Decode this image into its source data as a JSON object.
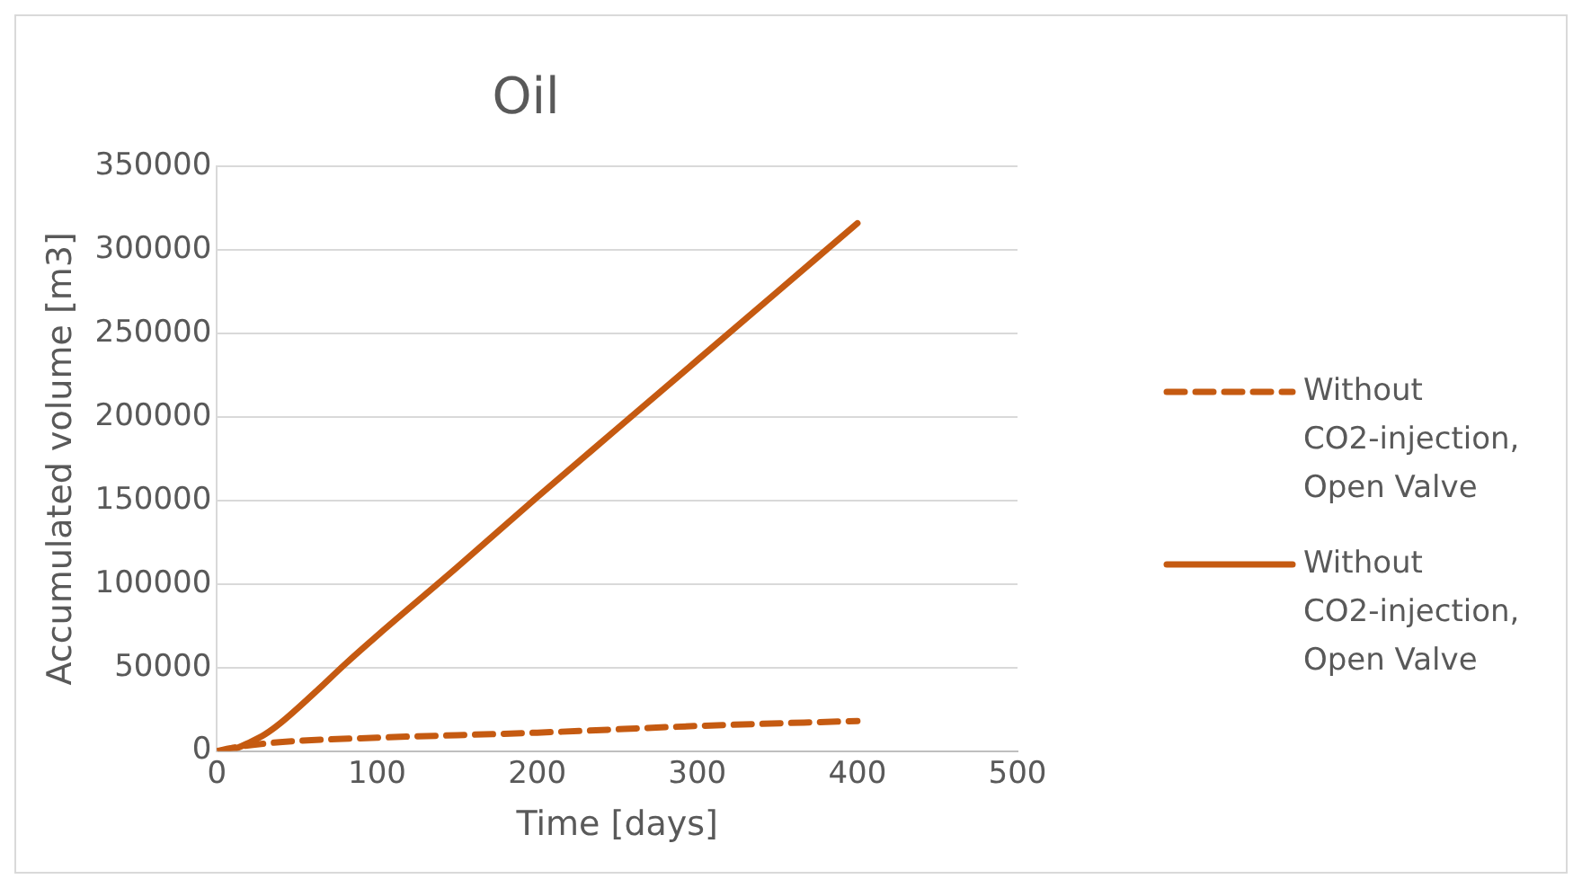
{
  "chart_data": {
    "type": "line",
    "title": "Oil",
    "xlabel": "Time [days]",
    "ylabel": "Accumulated volume [m3]",
    "xlim": [
      0,
      500
    ],
    "xticks": [
      0,
      100,
      200,
      300,
      400,
      500
    ],
    "ylim": [
      0,
      350000
    ],
    "yticks": [
      0,
      50000,
      100000,
      150000,
      200000,
      250000,
      300000,
      350000
    ],
    "grid": "y",
    "legend": "right",
    "marker": "none",
    "series": [
      {
        "name": "Without CO2-injection, Open Valve",
        "color": "#c55a11",
        "line_style": "dashed",
        "x": [
          0,
          10,
          25,
          50,
          100,
          200,
          300,
          400
        ],
        "values": [
          0,
          2000,
          4000,
          6000,
          8000,
          11000,
          15000,
          18000
        ]
      },
      {
        "name": "Without CO2-injection, Open Valve",
        "color": "#c55a11",
        "line_style": "solid",
        "x": [
          0,
          10,
          20,
          30,
          40,
          60,
          80,
          100,
          150,
          200,
          250,
          300,
          350,
          400
        ],
        "values": [
          0,
          1000,
          5000,
          10000,
          17000,
          34000,
          52000,
          69000,
          110000,
          152000,
          193000,
          234000,
          275000,
          316000
        ]
      }
    ]
  }
}
